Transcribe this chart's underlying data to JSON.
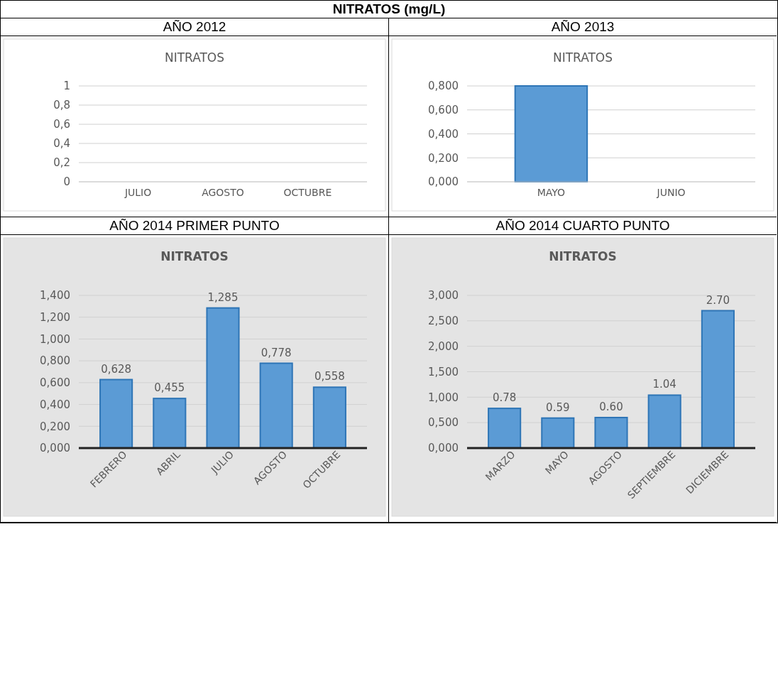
{
  "chart_data": [
    {
      "type": "other",
      "title": "NITRATOS (mg/L)"
    },
    {
      "type": "bar",
      "subtitle": "AÑO 2012",
      "title": "NITRATOS",
      "categories": [
        "JULIO",
        "AGOSTO",
        "OCTUBRE"
      ],
      "values": [
        0,
        0,
        0
      ],
      "color": "#5b9bd5",
      "ylim": [
        0,
        1
      ],
      "yticks": [
        0,
        {
          "value": 0.2,
          "label": "0,2"
        },
        {
          "value": 0.4,
          "label": "0,4"
        },
        {
          "value": 0.6,
          "label": "0,6"
        },
        {
          "value": 0.8,
          "label": "0,8"
        },
        1
      ],
      "grid": "y"
    },
    {
      "type": "bar",
      "subtitle": "AÑO 2013",
      "title": "NITRATOS",
      "categories": [
        "MAYO",
        "JUNIO"
      ],
      "values": [
        0.8,
        0
      ],
      "color": "#5b9bd5",
      "ylim": [
        0,
        0.8
      ],
      "yticks": [
        {
          "value": 0,
          "label": "0,000"
        },
        {
          "value": 0.2,
          "label": "0,200"
        },
        {
          "value": 0.4,
          "label": "0,400"
        },
        {
          "value": 0.6,
          "label": "0,600"
        },
        {
          "value": 0.8,
          "label": "0,800"
        }
      ],
      "grid": "y"
    },
    {
      "type": "bar",
      "subtitle": "AÑO 2014 PRIMER PUNTO",
      "title": "NITRATOS",
      "categories": [
        "FEBRERO",
        "ABRIL",
        "JULIO",
        "AGOSTO",
        "OCTUBRE"
      ],
      "values": [
        0.628,
        0.455,
        1.285,
        0.778,
        0.558
      ],
      "value_labels": [
        "0,628",
        "0,455",
        "1,285",
        "0,778",
        "0,558"
      ],
      "color": "#5b9bd5",
      "ylim": [
        0,
        1.4
      ],
      "yticks": [
        {
          "value": 0,
          "label": "0,000"
        },
        {
          "value": 0.2,
          "label": "0,200"
        },
        {
          "value": 0.4,
          "label": "0,400"
        },
        {
          "value": 0.6,
          "label": "0,600"
        },
        {
          "value": 0.8,
          "label": "0,800"
        },
        {
          "value": 1,
          "label": "1,000"
        },
        {
          "value": 1.2,
          "label": "1,200"
        },
        {
          "value": 1.4,
          "label": "1,400"
        }
      ],
      "grid": "y"
    },
    {
      "type": "bar",
      "subtitle": "AÑO 2014 CUARTO PUNTO",
      "title": "NITRATOS",
      "categories": [
        "MARZO",
        "MAYO",
        "AGOSTO",
        "SEPTIEMBRE",
        "DICIEMBRE"
      ],
      "values": [
        0.78,
        0.59,
        0.6,
        1.04,
        2.7
      ],
      "value_labels": [
        "0.78",
        "0.59",
        "0.60",
        "1.04",
        "2.70"
      ],
      "color": "#5b9bd5",
      "ylim": [
        0,
        3
      ],
      "yticks": [
        {
          "value": 0,
          "label": "0,000"
        },
        {
          "value": 0.5,
          "label": "0,500"
        },
        {
          "value": 1,
          "label": "1,000"
        },
        {
          "value": 1.5,
          "label": "1,500"
        },
        {
          "value": 2,
          "label": "2,000"
        },
        {
          "value": 2.5,
          "label": "2,500"
        },
        {
          "value": 3,
          "label": "3,000"
        }
      ],
      "grid": "y"
    }
  ]
}
